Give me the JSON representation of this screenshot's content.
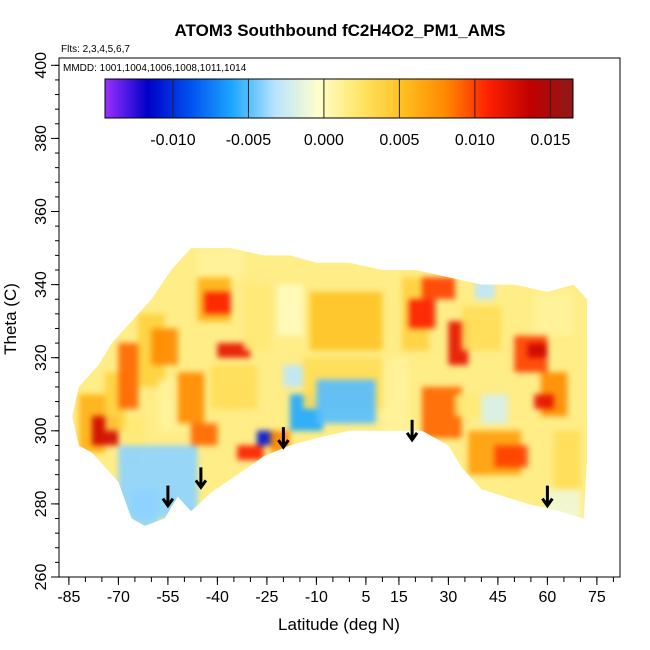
{
  "chart_data": {
    "type": "heatmap",
    "title": "ATOM3 Southbound fC2H4O2_PM1_AMS",
    "flights_label": "Flts: 2,3,4,5,6,7",
    "mmdd_label": "MMDD: 1001,1004,1006,1008,1011,1014",
    "xlabel": "Latitude (deg N)",
    "ylabel": "Theta (C)",
    "xlim": [
      -88,
      82
    ],
    "ylim": [
      260,
      402
    ],
    "xticks": [
      -85,
      -70,
      -55,
      -40,
      -25,
      -10,
      5,
      15,
      30,
      45,
      60,
      75
    ],
    "yticks": [
      260,
      280,
      300,
      320,
      340,
      360,
      380,
      400
    ],
    "colorbar": {
      "min": -0.0145,
      "max": 0.0165,
      "ticks": [
        -0.01,
        -0.005,
        0.0,
        0.005,
        0.01,
        0.015
      ],
      "tick_labels": [
        "-0.010",
        "-0.005",
        "0.000",
        "0.005",
        "0.010",
        "0.015"
      ],
      "colors": [
        "#9b30ff",
        "#0000c8",
        "#0050f0",
        "#1ea8ff",
        "#b8e4ff",
        "#ffffcc",
        "#ffe566",
        "#ffc020",
        "#ff8a00",
        "#ff2000",
        "#c00000",
        "#901818"
      ]
    },
    "arrows": [
      {
        "lat": -55,
        "theta": 285
      },
      {
        "lat": -45,
        "theta": 290
      },
      {
        "lat": -20,
        "theta": 301
      },
      {
        "lat": 19,
        "theta": 303
      },
      {
        "lat": 60,
        "theta": 285
      }
    ],
    "regions": [
      {
        "lat": [
          -82,
          -74
        ],
        "theta": [
          294,
          310
        ],
        "value": 0.006
      },
      {
        "lat": [
          -78,
          -70
        ],
        "theta": [
          296,
          304
        ],
        "value": 0.013
      },
      {
        "lat": [
          -74,
          -68
        ],
        "theta": [
          300,
          316
        ],
        "value": 0.004
      },
      {
        "lat": [
          -70,
          -64
        ],
        "theta": [
          306,
          324
        ],
        "value": 0.009
      },
      {
        "lat": [
          -68,
          -62
        ],
        "theta": [
          290,
          304
        ],
        "value": 0.002
      },
      {
        "lat": [
          -64,
          -56
        ],
        "theta": [
          312,
          332
        ],
        "value": 0.004
      },
      {
        "lat": [
          -60,
          -52
        ],
        "theta": [
          318,
          328
        ],
        "value": 0.008
      },
      {
        "lat": [
          -58,
          -50
        ],
        "theta": [
          300,
          314
        ],
        "value": 0.001
      },
      {
        "lat": [
          -70,
          -46
        ],
        "theta": [
          276,
          296
        ],
        "value": -0.004
      },
      {
        "lat": [
          -66,
          -58
        ],
        "theta": [
          272,
          284
        ],
        "value": -0.004
      },
      {
        "lat": [
          -52,
          -44
        ],
        "theta": [
          302,
          316
        ],
        "value": 0.008
      },
      {
        "lat": [
          -48,
          -40
        ],
        "theta": [
          296,
          302
        ],
        "value": 0.009
      },
      {
        "lat": [
          -46,
          -36
        ],
        "theta": [
          330,
          342
        ],
        "value": 0.006
      },
      {
        "lat": [
          -44,
          -36
        ],
        "theta": [
          332,
          338
        ],
        "value": 0.011
      },
      {
        "lat": [
          -46,
          -32
        ],
        "theta": [
          342,
          350
        ],
        "value": 0.001
      },
      {
        "lat": [
          -40,
          -30
        ],
        "theta": [
          320,
          324
        ],
        "value": 0.012
      },
      {
        "lat": [
          -42,
          -28
        ],
        "theta": [
          306,
          318
        ],
        "value": 0.003
      },
      {
        "lat": [
          -32,
          -24
        ],
        "theta": [
          322,
          340
        ],
        "value": 0.002
      },
      {
        "lat": [
          -34,
          -26
        ],
        "theta": [
          292,
          296
        ],
        "value": 0.011
      },
      {
        "lat": [
          -28,
          -22
        ],
        "theta": [
          296,
          300
        ],
        "value": -0.011
      },
      {
        "lat": [
          -24,
          -18
        ],
        "theta": [
          294,
          300
        ],
        "value": 0.008
      },
      {
        "lat": [
          -22,
          -14
        ],
        "theta": [
          326,
          340
        ],
        "value": 0.0
      },
      {
        "lat": [
          -18,
          -8
        ],
        "theta": [
          300,
          310
        ],
        "value": -0.006
      },
      {
        "lat": [
          -20,
          -14
        ],
        "theta": [
          312,
          318
        ],
        "value": -0.003
      },
      {
        "lat": [
          -14,
          12
        ],
        "theta": [
          306,
          320
        ],
        "value": 0.003
      },
      {
        "lat": [
          -12,
          10
        ],
        "theta": [
          322,
          338
        ],
        "value": 0.005
      },
      {
        "lat": [
          -10,
          8
        ],
        "theta": [
          302,
          314
        ],
        "value": -0.005
      },
      {
        "lat": [
          10,
          18
        ],
        "theta": [
          298,
          320
        ],
        "value": 0.001
      },
      {
        "lat": [
          16,
          24
        ],
        "theta": [
          322,
          342
        ],
        "value": 0.004
      },
      {
        "lat": [
          18,
          26
        ],
        "theta": [
          328,
          336
        ],
        "value": 0.011
      },
      {
        "lat": [
          22,
          32
        ],
        "theta": [
          336,
          342
        ],
        "value": 0.01
      },
      {
        "lat": [
          22,
          34
        ],
        "theta": [
          298,
          312
        ],
        "value": 0.009
      },
      {
        "lat": [
          30,
          36
        ],
        "theta": [
          318,
          330
        ],
        "value": 0.012
      },
      {
        "lat": [
          32,
          40
        ],
        "theta": [
          304,
          310
        ],
        "value": 0.002
      },
      {
        "lat": [
          34,
          46
        ],
        "theta": [
          322,
          334
        ],
        "value": 0.003
      },
      {
        "lat": [
          38,
          44
        ],
        "theta": [
          336,
          342
        ],
        "value": -0.003
      },
      {
        "lat": [
          40,
          48
        ],
        "theta": [
          302,
          310
        ],
        "value": -0.002
      },
      {
        "lat": [
          36,
          52
        ],
        "theta": [
          288,
          300
        ],
        "value": 0.007
      },
      {
        "lat": [
          44,
          54
        ],
        "theta": [
          290,
          296
        ],
        "value": 0.01
      },
      {
        "lat": [
          50,
          60
        ],
        "theta": [
          316,
          326
        ],
        "value": 0.01
      },
      {
        "lat": [
          54,
          60
        ],
        "theta": [
          320,
          324
        ],
        "value": 0.013
      },
      {
        "lat": [
          58,
          66
        ],
        "theta": [
          304,
          316
        ],
        "value": 0.008
      },
      {
        "lat": [
          56,
          62
        ],
        "theta": [
          306,
          310
        ],
        "value": 0.012
      },
      {
        "lat": [
          56,
          68
        ],
        "theta": [
          326,
          338
        ],
        "value": 0.001
      },
      {
        "lat": [
          62,
          70
        ],
        "theta": [
          280,
          300
        ],
        "value": 0.003
      },
      {
        "lat": [
          60,
          70
        ],
        "theta": [
          276,
          284
        ],
        "value": -0.001
      }
    ]
  }
}
